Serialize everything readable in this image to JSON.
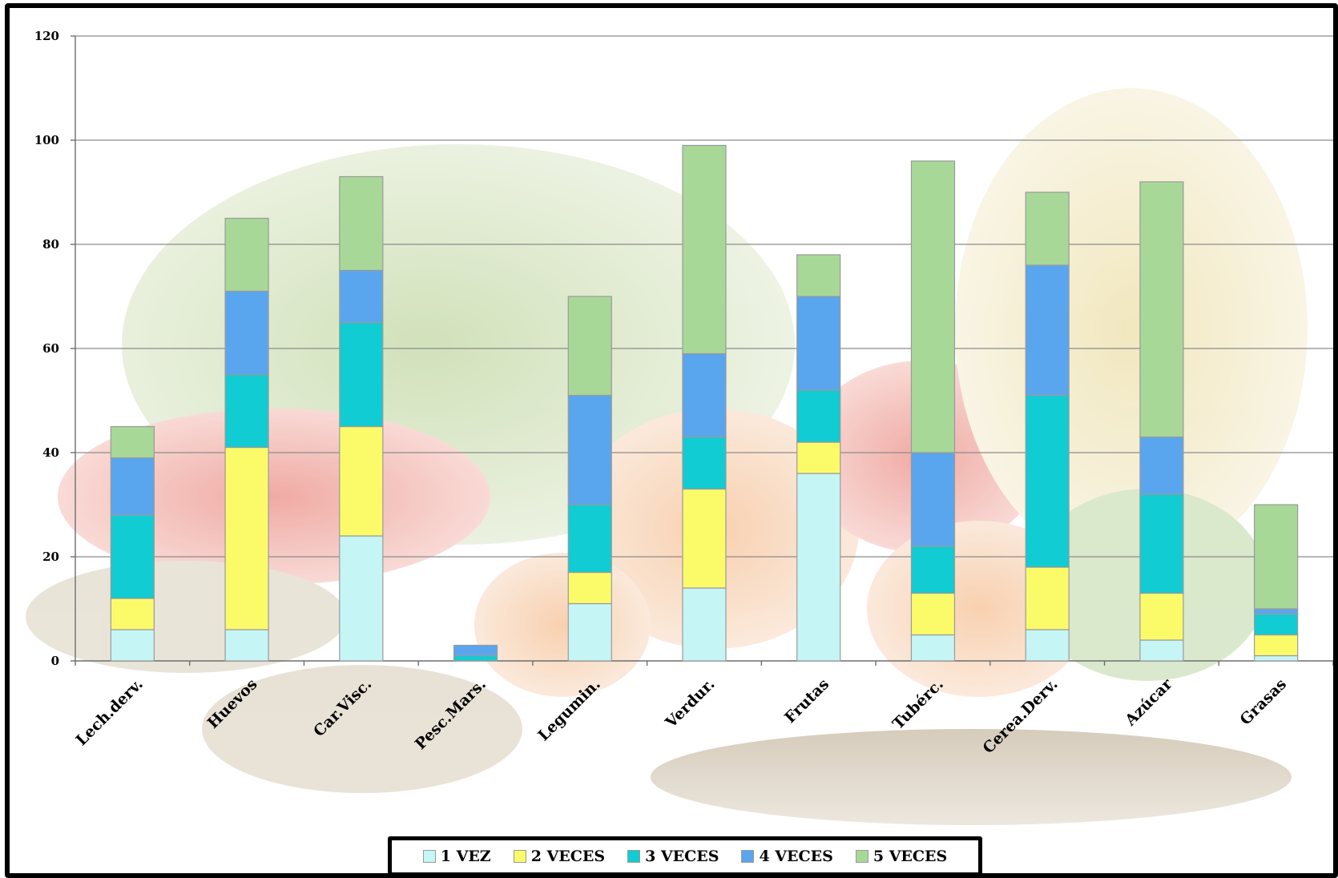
{
  "chart_data": {
    "type": "bar",
    "stacked": true,
    "categories": [
      "Lech.derv.",
      "Huevos",
      "Car.Visc.",
      "Pesc.Mars.",
      "Legumin.",
      "Verdur.",
      "Frutas",
      "Tubérc.",
      "Cerea.Derv.",
      "Azúcar",
      "Grasas"
    ],
    "series": [
      {
        "name": "1 VEZ",
        "color": "#c6f5f6",
        "values": [
          6,
          6,
          24,
          0,
          11,
          14,
          36,
          5,
          6,
          4,
          1
        ]
      },
      {
        "name": "2 VECES",
        "color": "#fbfb6a",
        "values": [
          6,
          35,
          21,
          0,
          6,
          19,
          6,
          8,
          12,
          9,
          4
        ]
      },
      {
        "name": "3 VECES",
        "color": "#11ccd2",
        "values": [
          16,
          14,
          20,
          1,
          13,
          10,
          10,
          9,
          33,
          19,
          4
        ]
      },
      {
        "name": "4 VECES",
        "color": "#5aa6ee",
        "values": [
          11,
          16,
          10,
          2,
          21,
          16,
          18,
          18,
          25,
          11,
          1
        ]
      },
      {
        "name": "5 VECES",
        "color": "#a8d898",
        "values": [
          6,
          14,
          18,
          0,
          19,
          40,
          8,
          56,
          14,
          49,
          20
        ]
      }
    ],
    "title": "",
    "xlabel": "",
    "ylabel": "",
    "ylim": [
      0,
      120
    ],
    "yticks": [
      0,
      20,
      40,
      60,
      80,
      100,
      120
    ],
    "grid": true,
    "legend_position": "bottom"
  }
}
